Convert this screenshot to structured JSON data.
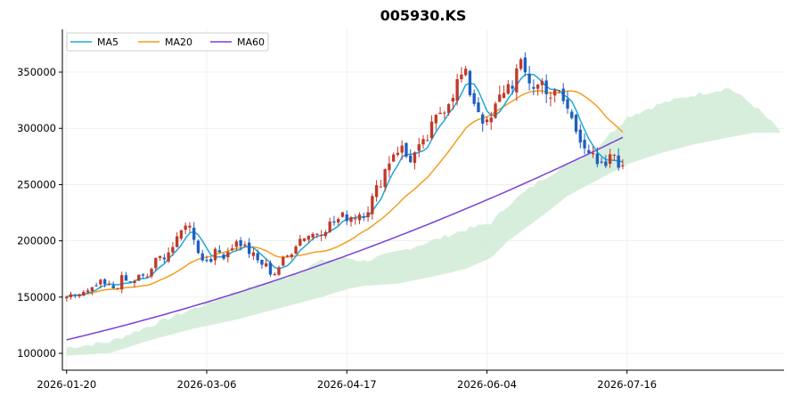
{
  "chart_data": {
    "type": "candlestick",
    "title": "005930.KS",
    "xlabel": "",
    "ylabel": "",
    "ylim": [
      85000,
      388000
    ],
    "x_tick_labels": [
      "2026-01-20",
      "2026-03-06",
      "2026-04-17",
      "2026-06-04",
      "2026-07-16"
    ],
    "y_tick_labels": [
      "100000",
      "150000",
      "200000",
      "250000",
      "300000",
      "350000"
    ],
    "y_ticks": [
      100000,
      150000,
      200000,
      250000,
      300000,
      350000
    ],
    "grid": true,
    "legend_position": "top-left",
    "colors": {
      "up": "#c0392b",
      "down": "#1f5fbf",
      "ma5": "#1ea8d8",
      "ma20": "#f29e1f",
      "ma60": "#7a3fd8",
      "cloud": "#d4ecd8"
    },
    "x_ticks": [
      {
        "label": "2026-01-20",
        "index": 0
      },
      {
        "label": "2026-03-06",
        "index": 33
      },
      {
        "label": "2026-04-17",
        "index": 66
      },
      {
        "label": "2026-06-04",
        "index": 99
      },
      {
        "label": "2026-07-16",
        "index": 132
      }
    ],
    "legend": [
      {
        "name": "MA5",
        "color": "#1ea8d8"
      },
      {
        "name": "MA20",
        "color": "#f29e1f"
      },
      {
        "name": "MA60",
        "color": "#7a3fd8"
      }
    ],
    "ohlc_anchors": [
      [
        0,
        147000
      ],
      [
        2,
        152000
      ],
      [
        6,
        154000
      ],
      [
        8,
        162000
      ],
      [
        10,
        160000
      ],
      [
        12,
        158000
      ],
      [
        14,
        166000
      ],
      [
        16,
        162000
      ],
      [
        18,
        168000
      ],
      [
        20,
        166000
      ],
      [
        22,
        180000
      ],
      [
        24,
        186000
      ],
      [
        26,
        192000
      ],
      [
        28,
        200000
      ],
      [
        30,
        218000
      ],
      [
        32,
        205000
      ],
      [
        34,
        182000
      ],
      [
        36,
        185000
      ],
      [
        38,
        190000
      ],
      [
        40,
        188000
      ],
      [
        42,
        198000
      ],
      [
        44,
        198000
      ],
      [
        46,
        190000
      ],
      [
        48,
        182000
      ],
      [
        50,
        178000
      ],
      [
        52,
        170000
      ],
      [
        54,
        180000
      ],
      [
        56,
        188000
      ],
      [
        58,
        200000
      ],
      [
        60,
        205000
      ],
      [
        62,
        206000
      ],
      [
        64,
        210000
      ],
      [
        66,
        214000
      ],
      [
        68,
        218000
      ],
      [
        70,
        222000
      ],
      [
        72,
        222000
      ],
      [
        74,
        225000
      ],
      [
        76,
        230000
      ],
      [
        78,
        245000
      ],
      [
        80,
        262000
      ],
      [
        82,
        278000
      ],
      [
        84,
        284000
      ],
      [
        86,
        272000
      ],
      [
        88,
        278000
      ],
      [
        90,
        285000
      ],
      [
        92,
        300000
      ],
      [
        94,
        315000
      ],
      [
        96,
        325000
      ],
      [
        98,
        338000
      ],
      [
        100,
        350000
      ],
      [
        102,
        328000
      ],
      [
        104,
        315000
      ],
      [
        106,
        300000
      ],
      [
        108,
        318000
      ],
      [
        110,
        335000
      ],
      [
        112,
        340000
      ],
      [
        114,
        355000
      ],
      [
        116,
        345000
      ],
      [
        118,
        336000
      ],
      [
        120,
        342000
      ],
      [
        122,
        328000
      ],
      [
        124,
        330000
      ],
      [
        126,
        318000
      ],
      [
        128,
        300000
      ],
      [
        130,
        290000
      ],
      [
        132,
        276000
      ],
      [
        134,
        262000
      ],
      [
        136,
        268000
      ],
      [
        138,
        278000
      ],
      [
        140,
        262000
      ]
    ],
    "last_candle_index": 131,
    "total_candles": 132,
    "ma5_last": 265000,
    "ma20_last": 305000,
    "ma60_last": 292000,
    "ma60_range": [
      112000,
      292000
    ],
    "cloud_future_periods": 37,
    "cloud_upper_anchors": [
      [
        0,
        105000
      ],
      [
        10,
        110000
      ],
      [
        20,
        125000
      ],
      [
        30,
        140000
      ],
      [
        40,
        155000
      ],
      [
        50,
        165000
      ],
      [
        60,
        182000
      ],
      [
        66,
        185000
      ],
      [
        70,
        182000
      ],
      [
        78,
        190000
      ],
      [
        86,
        200000
      ],
      [
        94,
        210000
      ],
      [
        100,
        216000
      ],
      [
        104,
        232000
      ],
      [
        112,
        255000
      ],
      [
        118,
        268000
      ],
      [
        124,
        280000
      ],
      [
        132,
        310000
      ],
      [
        140,
        322000
      ],
      [
        148,
        330000
      ],
      [
        156,
        336000
      ],
      [
        162,
        320000
      ],
      [
        168,
        298000
      ]
    ],
    "cloud_lower_anchors": [
      [
        0,
        98000
      ],
      [
        10,
        100000
      ],
      [
        20,
        112000
      ],
      [
        30,
        122000
      ],
      [
        40,
        130000
      ],
      [
        50,
        140000
      ],
      [
        60,
        150000
      ],
      [
        66,
        157000
      ],
      [
        70,
        160000
      ],
      [
        78,
        162000
      ],
      [
        86,
        168000
      ],
      [
        94,
        175000
      ],
      [
        100,
        185000
      ],
      [
        104,
        200000
      ],
      [
        112,
        222000
      ],
      [
        118,
        240000
      ],
      [
        124,
        252000
      ],
      [
        132,
        268000
      ],
      [
        140,
        278000
      ],
      [
        148,
        286000
      ],
      [
        156,
        292000
      ],
      [
        162,
        296000
      ],
      [
        168,
        296000
      ]
    ]
  }
}
